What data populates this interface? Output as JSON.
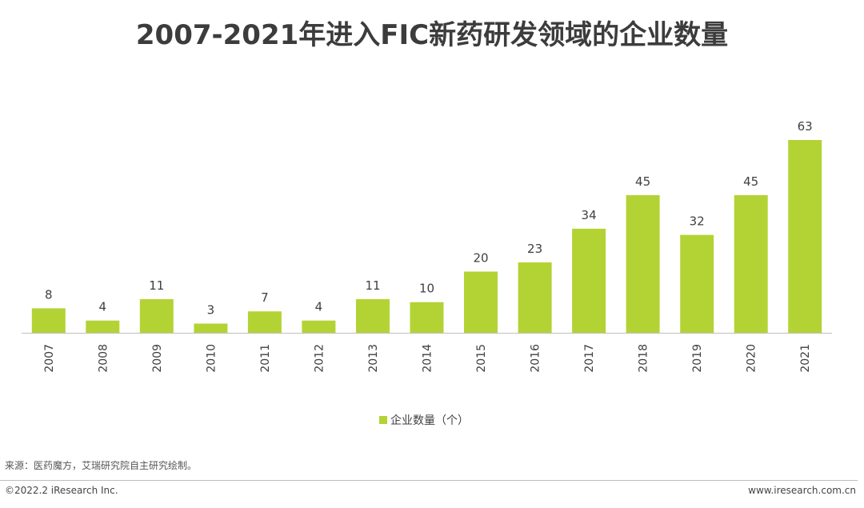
{
  "title": "2007-2021年进入FIC新药研发领域的企业数量",
  "source": "来源：医药魔方，艾瑞研究院自主研究绘制。",
  "copyright": "©2022.2 iResearch Inc.",
  "website": "www.iresearch.com.cn",
  "colors": {
    "bar": "#b3d335",
    "axis": "#bfbfbf",
    "text": "#404040"
  },
  "chart_data": {
    "type": "bar",
    "title": "2007-2021年进入FIC新药研发领域的企业数量",
    "categories": [
      "2007",
      "2008",
      "2009",
      "2010",
      "2011",
      "2012",
      "2013",
      "2014",
      "2015",
      "2016",
      "2017",
      "2018",
      "2019",
      "2020",
      "2021"
    ],
    "series": [
      {
        "name": "企业数量（个）",
        "values": [
          8,
          4,
          11,
          3,
          7,
          4,
          11,
          10,
          20,
          23,
          34,
          45,
          32,
          45,
          63
        ]
      }
    ],
    "xlabel": "",
    "ylabel": "",
    "ylim": [
      0,
      63
    ],
    "grid": false,
    "data_labels": true,
    "legend": "bottom-center"
  }
}
